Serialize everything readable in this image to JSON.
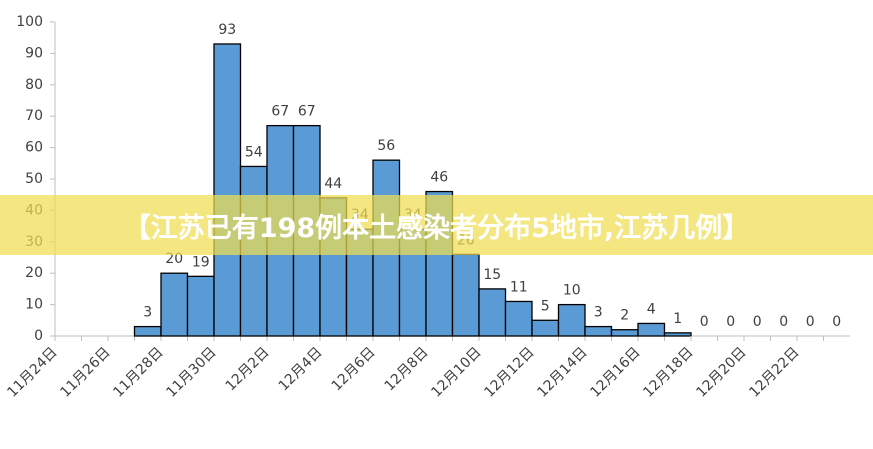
{
  "chart_data": {
    "type": "bar",
    "categories": [
      "11月24日",
      null,
      "11月26日",
      null,
      "11月28日",
      null,
      "11月30日",
      null,
      "12月2日",
      null,
      "12月4日",
      null,
      "12月6日",
      null,
      "12月8日",
      null,
      "12月10日",
      null,
      "12月12日",
      null,
      "12月14日",
      null,
      "12月16日",
      null,
      "12月18日",
      null,
      "12月20日",
      null,
      "12月22日",
      null
    ],
    "values": [
      null,
      null,
      null,
      3,
      20,
      19,
      93,
      54,
      67,
      67,
      44,
      34,
      56,
      34,
      46,
      26,
      15,
      11,
      5,
      10,
      3,
      2,
      4,
      1,
      0,
      0,
      0,
      0,
      0,
      0
    ],
    "color": "#5b9bd5",
    "ylim": [
      0,
      100
    ],
    "yticks": [
      0,
      10,
      20,
      30,
      40,
      50,
      60,
      70,
      80,
      90,
      100
    ],
    "grid": false
  },
  "banner": "【江苏已有198例本土感染者分布5地市,江苏几例】"
}
